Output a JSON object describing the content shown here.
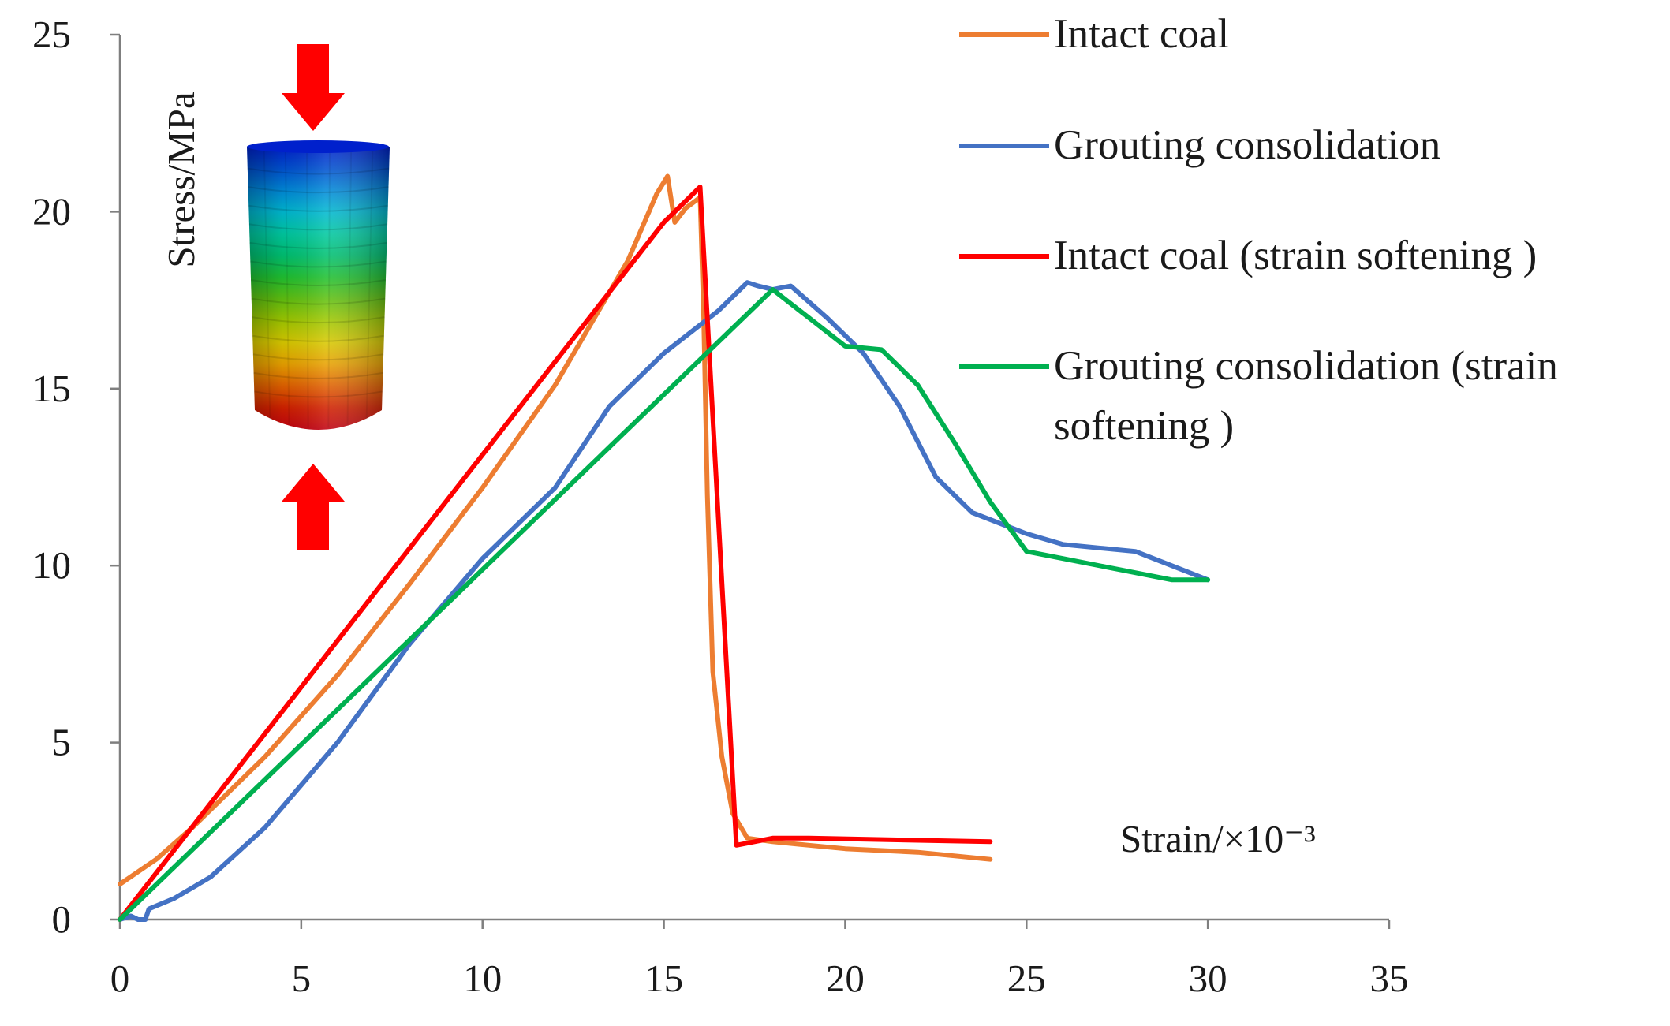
{
  "chart_data": {
    "type": "line",
    "xlabel": "Strain/×10⁻³",
    "ylabel": "Stress/MPa",
    "xlim": [
      0,
      35
    ],
    "ylim": [
      0,
      25
    ],
    "x_ticks": [
      "0",
      "5",
      "10",
      "15",
      "20",
      "25",
      "30",
      "35"
    ],
    "y_ticks": [
      "0",
      "5",
      "10",
      "15",
      "20",
      "25"
    ],
    "grid": false,
    "legend_position": "top-right",
    "series": [
      {
        "name": "Intact coal",
        "color": "#ED7D31",
        "points": [
          [
            0,
            1.0
          ],
          [
            1,
            1.7
          ],
          [
            2,
            2.6
          ],
          [
            4,
            4.6
          ],
          [
            6,
            6.9
          ],
          [
            8,
            9.5
          ],
          [
            10,
            12.2
          ],
          [
            12,
            15.1
          ],
          [
            14,
            18.6
          ],
          [
            14.8,
            20.5
          ],
          [
            15.1,
            21.0
          ],
          [
            15.3,
            19.7
          ],
          [
            15.6,
            20.1
          ],
          [
            16.0,
            20.4
          ],
          [
            16.1,
            17.0
          ],
          [
            16.2,
            12.0
          ],
          [
            16.35,
            7.0
          ],
          [
            16.6,
            4.6
          ],
          [
            16.9,
            3.0
          ],
          [
            17.3,
            2.3
          ],
          [
            18,
            2.2
          ],
          [
            19,
            2.1
          ],
          [
            20,
            2.0
          ],
          [
            22,
            1.9
          ],
          [
            24,
            1.7
          ]
        ]
      },
      {
        "name": "Grouting consolidation",
        "color": "#4472C4",
        "points": [
          [
            0,
            0
          ],
          [
            0.3,
            0.1
          ],
          [
            0.5,
            0.0
          ],
          [
            0.7,
            0.0
          ],
          [
            0.8,
            0.3
          ],
          [
            1.5,
            0.6
          ],
          [
            2.5,
            1.2
          ],
          [
            4,
            2.6
          ],
          [
            6,
            5.0
          ],
          [
            8,
            7.8
          ],
          [
            10,
            10.2
          ],
          [
            12,
            12.2
          ],
          [
            13.5,
            14.5
          ],
          [
            15,
            16.0
          ],
          [
            16.5,
            17.2
          ],
          [
            17.3,
            18.0
          ],
          [
            17.6,
            17.9
          ],
          [
            18.0,
            17.8
          ],
          [
            18.5,
            17.9
          ],
          [
            19.5,
            17.0
          ],
          [
            20.5,
            16.0
          ],
          [
            21.5,
            14.5
          ],
          [
            22.5,
            12.5
          ],
          [
            23.5,
            11.5
          ],
          [
            25,
            10.9
          ],
          [
            26,
            10.6
          ],
          [
            27,
            10.5
          ],
          [
            28,
            10.4
          ],
          [
            29,
            10.0
          ],
          [
            30,
            9.6
          ]
        ]
      },
      {
        "name": "Intact coal (strain softening )",
        "color": "#FF0000",
        "points": [
          [
            0,
            0
          ],
          [
            15,
            19.7
          ],
          [
            16,
            20.7
          ],
          [
            17,
            2.1
          ],
          [
            18,
            2.3
          ],
          [
            19,
            2.3
          ],
          [
            24,
            2.2
          ]
        ]
      },
      {
        "name": "Grouting consolidation (strain softening )",
        "color": "#00B050",
        "points": [
          [
            0,
            0
          ],
          [
            18,
            17.8
          ],
          [
            20,
            16.2
          ],
          [
            21,
            16.1
          ],
          [
            22,
            15.1
          ],
          [
            23,
            13.5
          ],
          [
            24,
            11.8
          ],
          [
            25,
            10.4
          ],
          [
            26,
            10.2
          ],
          [
            28,
            9.8
          ],
          [
            29,
            9.6
          ],
          [
            30,
            9.6
          ]
        ]
      }
    ]
  },
  "legend": {
    "items": [
      {
        "label_lines": [
          "Intact coal"
        ],
        "color": "#ED7D31"
      },
      {
        "label_lines": [
          "Grouting consolidation"
        ],
        "color": "#4472C4"
      },
      {
        "label_lines": [
          "Intact coal (strain softening )"
        ],
        "color": "#FF0000"
      },
      {
        "label_lines": [
          "Grouting consolidation (strain",
          "softening )"
        ],
        "color": "#00B050"
      }
    ]
  },
  "inset": {
    "specimen_colors": [
      "#0020CC",
      "#0050D0",
      "#0088D8",
      "#00B8D0",
      "#00C8A0",
      "#00C070",
      "#20C030",
      "#60C010",
      "#A0C800",
      "#D8C800",
      "#E8A000",
      "#E06000",
      "#D02000",
      "#C00010"
    ],
    "arrow_color": "#FF0000"
  }
}
